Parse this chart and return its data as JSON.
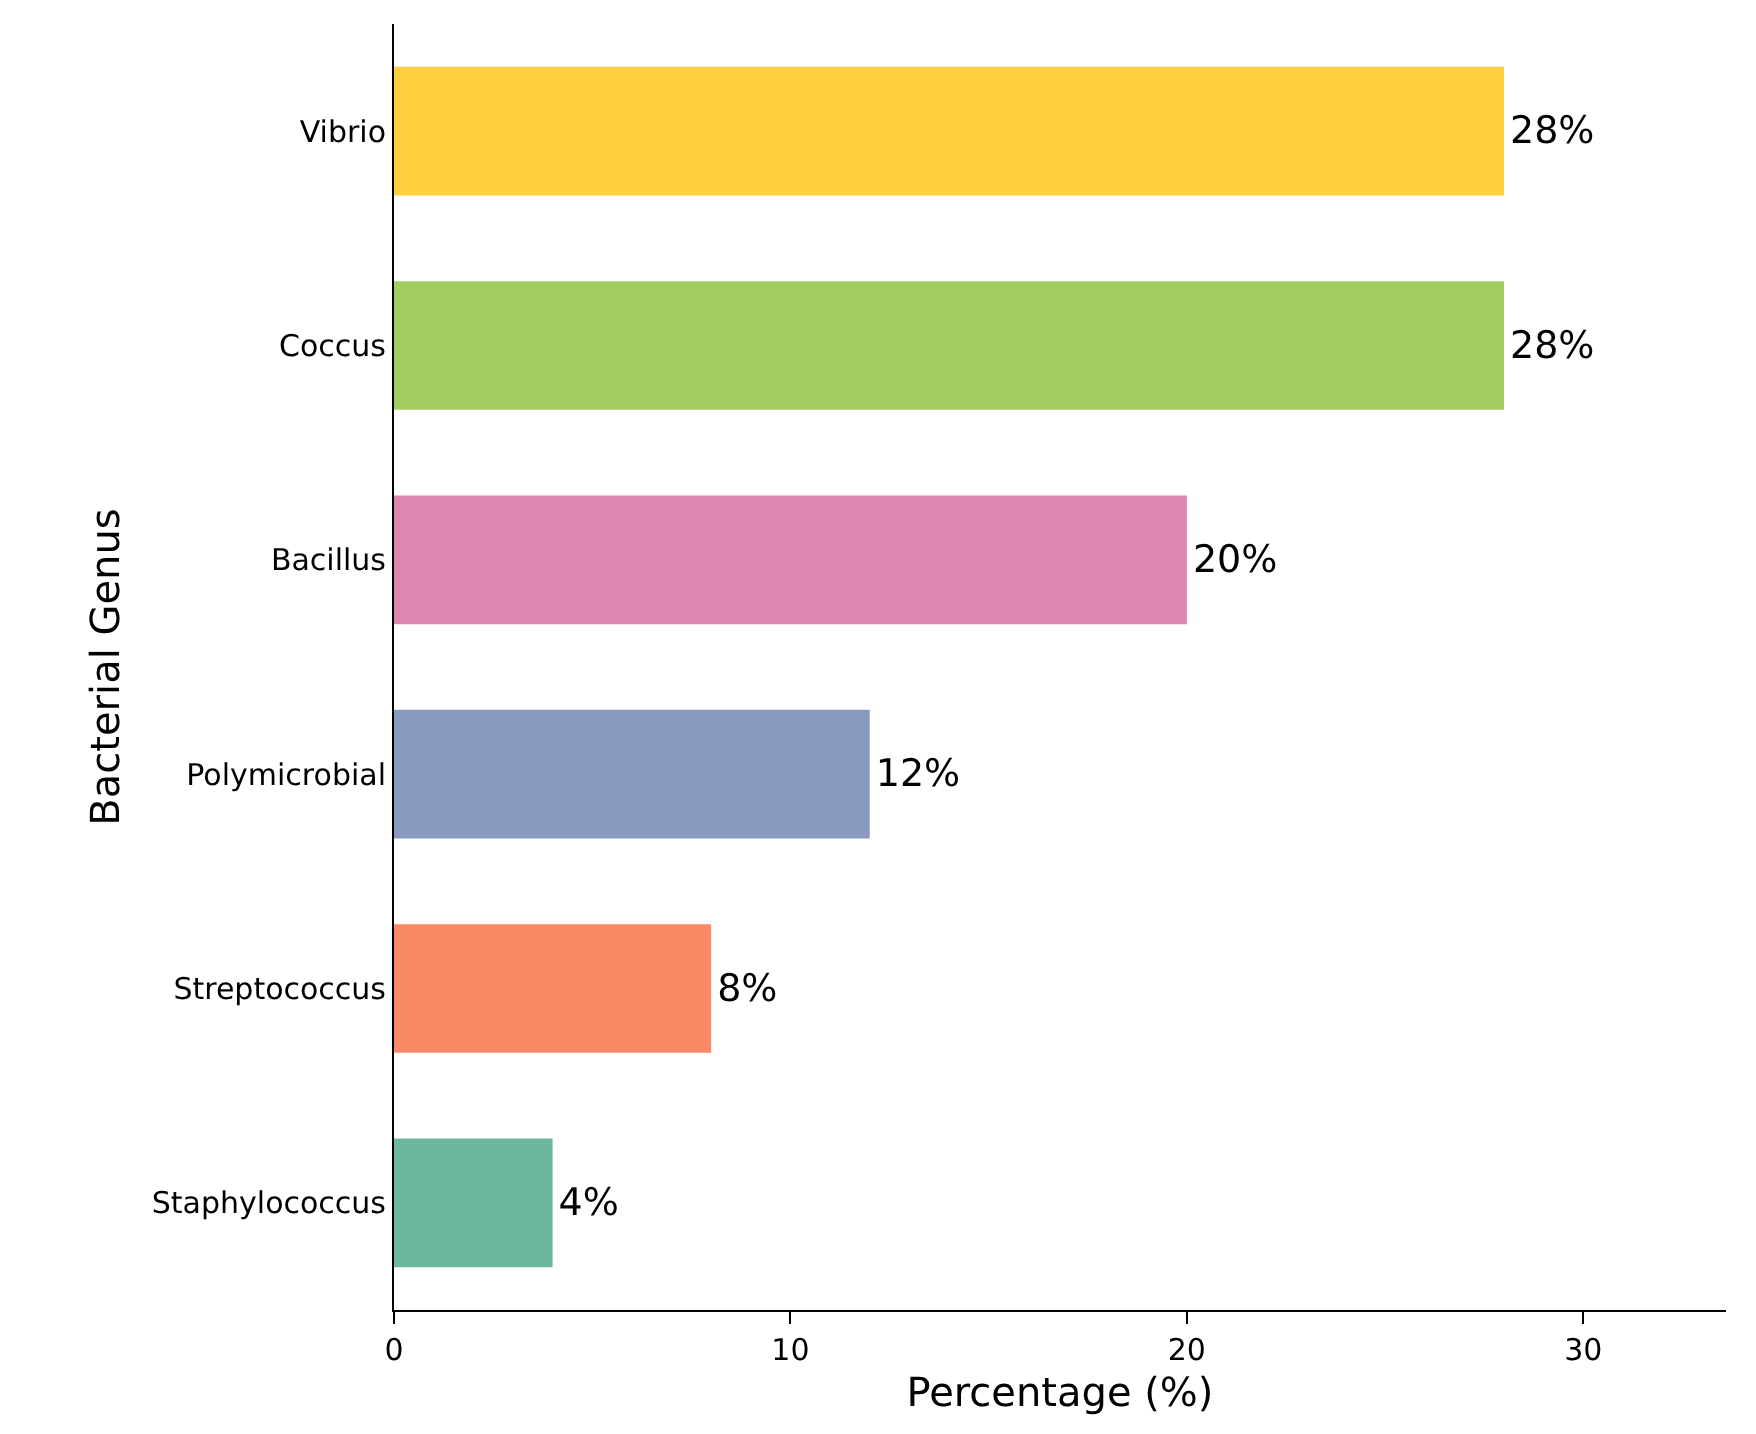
{
  "chart_data": {
    "type": "bar",
    "orientation": "horizontal",
    "xlabel": "Percentage (%)",
    "ylabel": "Bacterial Genus",
    "categories": [
      "Vibrio",
      "Coccus",
      "Bacillus",
      "Polymicrobial",
      "Streptococcus",
      "Staphylococcus"
    ],
    "values": [
      28,
      28,
      20,
      12,
      8,
      4
    ],
    "colors": [
      "#ffcf40",
      "#a0cd5e",
      "#df86b5",
      "#8a99bf",
      "#fb8966",
      "#6bb89e"
    ],
    "value_labels": [
      "28%",
      "28%",
      "20%",
      "12%",
      "8%",
      "4%"
    ],
    "xlim": [
      0,
      33.6
    ],
    "xticks": [
      0,
      10,
      20,
      30
    ]
  }
}
